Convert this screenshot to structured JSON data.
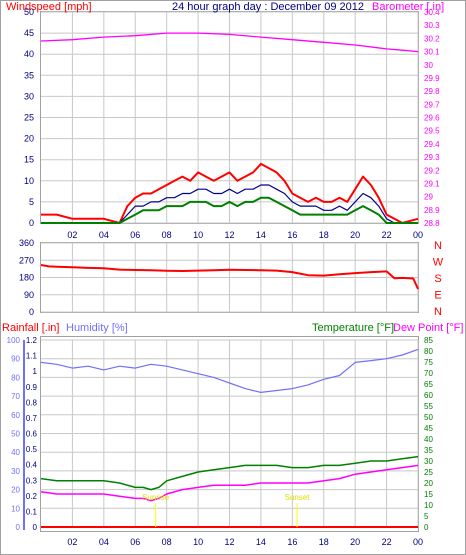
{
  "panel_top": {
    "title": "24 hour graph day : December 09 2012",
    "left_axis_label": "Windspeed [mph]",
    "right_axis_label": "Barometer [.in]",
    "x_ticks": [
      "02",
      "04",
      "06",
      "08",
      "10",
      "12",
      "14",
      "16",
      "18",
      "20",
      "22",
      "00"
    ],
    "left_ticks": [
      "0",
      "5",
      "10",
      "15",
      "20",
      "25",
      "30",
      "35",
      "40",
      "45",
      "50"
    ],
    "right_ticks": [
      "28.8",
      "28.9",
      "29",
      "29.1",
      "29.2",
      "29.3",
      "29.4",
      "29.5",
      "29.6",
      "29.7",
      "29.8",
      "29.9",
      "30",
      "30.1",
      "30.2",
      "30.3",
      "30.4"
    ]
  },
  "panel_mid": {
    "left_ticks": [
      "0",
      "90",
      "180",
      "270",
      "360"
    ],
    "compass": [
      "N",
      "W",
      "S",
      "E",
      "N"
    ]
  },
  "panel_bottom": {
    "label_rain": "Rainfall [.in]",
    "label_hum": "Humidity [%]",
    "label_temp": "Temperature [°F]",
    "label_dew": "Dew Point [°F]",
    "rain_ticks": [
      "0",
      "0.1",
      "0.2",
      "0.3",
      "0.4",
      "0.5",
      "0.6",
      "0.7",
      "0.8",
      "0.9",
      "1",
      "1.1",
      "1.2"
    ],
    "hum_ticks": [
      "0",
      "10",
      "20",
      "30",
      "40",
      "50",
      "60",
      "70",
      "80",
      "90",
      "100"
    ],
    "temp_ticks": [
      "0",
      "5",
      "10",
      "15",
      "20",
      "25",
      "30",
      "35",
      "40",
      "45",
      "50",
      "55",
      "60",
      "65",
      "70",
      "75",
      "80",
      "85"
    ],
    "sunrise_label": "Sunrise",
    "sunset_label": "Sunset",
    "x_ticks": [
      "02",
      "04",
      "06",
      "08",
      "10",
      "12",
      "14",
      "16",
      "18",
      "20",
      "22",
      "00"
    ]
  },
  "colors": {
    "wind_gust": "#ff0000",
    "wind_avg": "#00008b",
    "wind_low": "#008000",
    "barometer": "#ff00ff",
    "direction": "#ff0000",
    "humidity": "#7070ff",
    "temperature": "#008000",
    "dewpoint": "#ff00ff",
    "rainfall": "#ff0000",
    "sun": "#ffff00",
    "grid": "#c8c8c8",
    "tick_text": "#000080",
    "hum_axis": "#7070ff"
  },
  "chart_data": [
    {
      "type": "line",
      "title": "24 hour graph day : December 09 2012",
      "xlabel": "",
      "ylabel": "Windspeed [mph]",
      "x_unit": "hour",
      "ylim": [
        0,
        50
      ],
      "y2label": "Barometer [.in]",
      "y2lim": [
        28.8,
        30.4
      ],
      "grid": true,
      "series": [
        {
          "name": "Windspeed [mph]",
          "axis": "left",
          "role": "gust",
          "x": [
            0,
            1,
            2,
            3,
            4,
            5,
            5.5,
            6,
            6.5,
            7,
            7.5,
            8,
            8.5,
            9,
            9.5,
            10,
            10.5,
            11,
            11.5,
            12,
            12.5,
            13,
            13.5,
            14,
            14.5,
            15,
            15.5,
            16,
            16.5,
            17,
            17.5,
            18,
            18.5,
            19,
            19.5,
            20,
            20.5,
            21,
            21.5,
            22,
            22.5,
            23,
            24
          ],
          "y": [
            2,
            2,
            1,
            1,
            1,
            0,
            4,
            6,
            7,
            7,
            8,
            9,
            10,
            11,
            10,
            12,
            11,
            10,
            11,
            12,
            10,
            11,
            12,
            14,
            13,
            12,
            10,
            7,
            6,
            5,
            6,
            5,
            5,
            6,
            5,
            8,
            11,
            9,
            6,
            2,
            1,
            0,
            1
          ]
        },
        {
          "name": "",
          "axis": "left",
          "role": "average",
          "x": [
            0,
            5,
            5.5,
            6,
            6.5,
            7,
            7.5,
            8,
            8.5,
            9,
            9.5,
            10,
            10.5,
            11,
            11.5,
            12,
            12.5,
            13,
            13.5,
            14,
            14.5,
            15,
            15.5,
            16,
            16.5,
            17,
            17.5,
            18,
            18.5,
            19,
            19.5,
            20,
            20.5,
            21,
            21.5,
            22,
            22.5,
            23,
            24
          ],
          "y": [
            0,
            0,
            2,
            4,
            4,
            5,
            5,
            6,
            6,
            7,
            7,
            8,
            8,
            7,
            7,
            8,
            7,
            8,
            8,
            9,
            9,
            8,
            7,
            5,
            4,
            4,
            4,
            3,
            3,
            4,
            3,
            5,
            7,
            6,
            4,
            1,
            0,
            0,
            0
          ]
        },
        {
          "name": "",
          "axis": "left",
          "role": "low",
          "x": [
            0,
            5,
            5.5,
            6,
            6.5,
            7,
            7.5,
            8,
            8.5,
            9,
            9.5,
            10,
            10.5,
            11,
            11.5,
            12,
            12.5,
            13,
            13.5,
            14,
            14.5,
            15,
            15.5,
            16,
            16.5,
            17,
            17.5,
            18,
            18.5,
            19,
            19.5,
            20,
            20.5,
            21,
            21.5,
            22,
            22.5,
            23,
            24
          ],
          "y": [
            0,
            0,
            1,
            2,
            3,
            3,
            3,
            4,
            4,
            4,
            5,
            5,
            5,
            4,
            4,
            5,
            4,
            5,
            5,
            6,
            6,
            5,
            4,
            3,
            2,
            2,
            2,
            2,
            2,
            2,
            2,
            3,
            4,
            3,
            2,
            0,
            0,
            0,
            0
          ]
        },
        {
          "name": "Barometer [.in]",
          "axis": "right",
          "x": [
            0,
            2,
            4,
            6,
            8,
            9,
            10,
            12,
            14,
            16,
            18,
            20,
            22,
            23,
            24
          ],
          "y": [
            30.18,
            30.19,
            30.21,
            30.22,
            30.24,
            30.24,
            30.24,
            30.23,
            30.21,
            30.19,
            30.17,
            30.15,
            30.12,
            30.11,
            30.1
          ]
        }
      ]
    },
    {
      "type": "line",
      "title": "",
      "xlabel": "",
      "ylabel": "",
      "ylim": [
        0,
        360
      ],
      "grid": true,
      "series": [
        {
          "name": "",
          "x": [
            0,
            0.5,
            1,
            2,
            3,
            4,
            5,
            6,
            7,
            8,
            9,
            10,
            11,
            12,
            13,
            14,
            15,
            16,
            17,
            18,
            19,
            20,
            21,
            22,
            22.5,
            23,
            23.7,
            24
          ],
          "y": [
            245,
            238,
            236,
            233,
            230,
            228,
            221,
            219,
            218,
            215,
            214,
            216,
            218,
            220,
            219,
            218,
            216,
            208,
            192,
            190,
            197,
            203,
            208,
            212,
            176,
            178,
            175,
            120
          ]
        }
      ]
    },
    {
      "type": "line",
      "title": "",
      "xlabel": "",
      "ylabel": "Rainfall [.in]",
      "ylim": [
        0,
        1.2
      ],
      "y2label": "Temperature [°F]",
      "y2lim": [
        0,
        85
      ],
      "humidity_lim": [
        0,
        100
      ],
      "grid": true,
      "series": [
        {
          "name": "Humidity [%]",
          "axis": "humidity",
          "x": [
            0,
            1,
            2,
            3,
            4,
            5,
            6,
            7,
            8,
            9,
            10,
            11,
            12,
            13,
            14,
            15,
            16,
            17,
            18,
            19,
            20,
            21,
            22,
            23,
            24
          ],
          "y": [
            88,
            87,
            85,
            86,
            84,
            86,
            85,
            87,
            86,
            84,
            82,
            80,
            77,
            74,
            72,
            73,
            74,
            76,
            79,
            81,
            88,
            89,
            90,
            92,
            95
          ]
        },
        {
          "name": "Temperature [°F]",
          "axis": "temp",
          "x": [
            0,
            1,
            2,
            3,
            4,
            5,
            6,
            6.5,
            7,
            7.5,
            8,
            9,
            10,
            11,
            12,
            13,
            14,
            15,
            16,
            17,
            18,
            19,
            20,
            21,
            22,
            23,
            24
          ],
          "y": [
            22,
            21,
            21,
            21,
            21,
            20,
            18,
            18,
            17,
            18,
            21,
            23,
            25,
            26,
            27,
            28,
            28,
            28,
            27,
            27,
            28,
            28,
            29,
            30,
            30,
            31,
            32
          ]
        },
        {
          "name": "Dew Point [°F]",
          "axis": "temp",
          "x": [
            0,
            1,
            2,
            3,
            4,
            5,
            6,
            6.5,
            7,
            7.5,
            8,
            9,
            10,
            11,
            12,
            13,
            14,
            15,
            16,
            17,
            18,
            19,
            20,
            21,
            22,
            23,
            24
          ],
          "y": [
            16,
            15,
            15,
            15,
            15,
            14,
            13,
            13,
            12,
            13,
            15,
            17,
            18,
            19,
            19,
            19,
            20,
            20,
            20,
            20,
            21,
            22,
            24,
            25,
            26,
            27,
            28
          ]
        },
        {
          "name": "Rainfall [.in]",
          "axis": "rain",
          "x": [
            0,
            24
          ],
          "y": [
            0,
            0
          ]
        }
      ],
      "annotations": [
        {
          "text": "Sunrise",
          "x": 7.3
        },
        {
          "text": "Sunset",
          "x": 16.3
        }
      ]
    }
  ]
}
